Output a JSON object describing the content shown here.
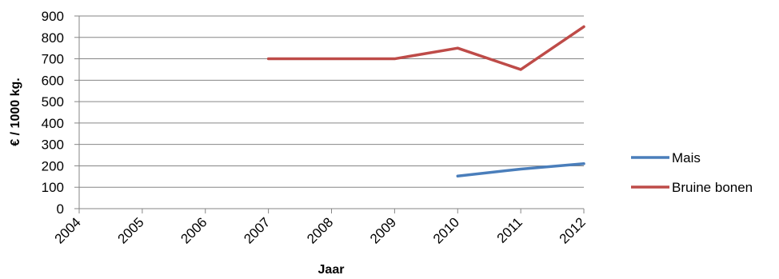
{
  "chart_data": {
    "type": "line",
    "x": [
      "2004",
      "2005",
      "2006",
      "2007",
      "2008",
      "2009",
      "2010",
      "2011",
      "2012"
    ],
    "series": [
      {
        "name": "Mais",
        "color": "#4a7ebb",
        "values": [
          null,
          null,
          null,
          null,
          null,
          null,
          152,
          185,
          210
        ]
      },
      {
        "name": "Bruine bonen",
        "color": "#be4b48",
        "values": [
          null,
          null,
          null,
          700,
          700,
          700,
          750,
          650,
          850
        ]
      }
    ],
    "xlabel": "Jaar",
    "ylabel": "€ / 1000 kg.",
    "ylim": [
      0,
      900
    ],
    "yticks": [
      "0",
      "100",
      "200",
      "300",
      "400",
      "500",
      "600",
      "700",
      "800",
      "900"
    ],
    "grid": true,
    "legend_position": "right"
  }
}
